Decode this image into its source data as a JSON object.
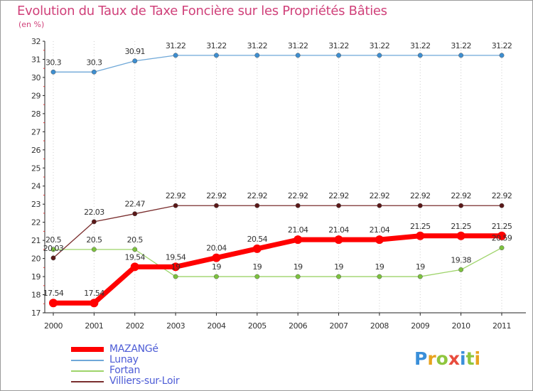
{
  "page": {
    "title": "Evolution du Taux de Taxe Foncière sur les Propriétés Bâties",
    "subtitle": "(en %)",
    "logo": {
      "letters": [
        "P",
        "r",
        "o",
        "x",
        "i",
        "t",
        "i"
      ],
      "colors": [
        "#3a8fd9",
        "#e8a31f",
        "#8fc63e",
        "#e84c3d",
        "#3a8fd9",
        "#8fc63e",
        "#e8a31f"
      ]
    }
  },
  "chart_data": {
    "type": "line",
    "title": "Evolution du Taux de Taxe Foncière sur les Propriétés Bâties",
    "ylabel": "(en %)",
    "xlabel": "",
    "x": [
      "2000",
      "2001",
      "2002",
      "2003",
      "2004",
      "2005",
      "2006",
      "2007",
      "2008",
      "2009",
      "2010",
      "2011"
    ],
    "ylim": [
      17,
      32
    ],
    "yticks": [
      "17",
      "18",
      "19",
      "20",
      "21",
      "22",
      "23",
      "24",
      "25",
      "26",
      "27",
      "28",
      "29",
      "30",
      "31",
      "32"
    ],
    "grid": "vertical dotted",
    "legend_position": "bottom-left",
    "series": [
      {
        "name": "MAZANGé",
        "color": "#ff0000",
        "width": 7,
        "marker": 6,
        "labelPos": "above",
        "values": [
          17.54,
          17.54,
          19.54,
          19.54,
          20.04,
          20.54,
          21.04,
          21.04,
          21.04,
          21.25,
          21.25,
          21.25
        ],
        "labels": [
          "17.54",
          "17.54",
          "19.54",
          "19.54",
          "20.04",
          "20.54",
          "21.04",
          "21.04",
          "21.04",
          "21.25",
          "21.25",
          "21.25"
        ]
      },
      {
        "name": "Lunay",
        "color": "#6fa8d8",
        "width": 1.3,
        "marker": 3.2,
        "markerColor": "#3d8ed0",
        "labelPos": "above",
        "values": [
          30.3,
          30.3,
          30.91,
          31.22,
          31.22,
          31.22,
          31.22,
          31.22,
          31.22,
          31.22,
          31.22,
          31.22
        ],
        "labels": [
          "30.3",
          "30.3",
          "30.91",
          "31.22",
          "31.22",
          "31.22",
          "31.22",
          "31.22",
          "31.22",
          "31.22",
          "31.22",
          "31.22"
        ]
      },
      {
        "name": "Fortan",
        "color": "#9ed46a",
        "width": 1.3,
        "marker": 3.2,
        "markerColor": "#7cc23e",
        "labelPos": "above",
        "values": [
          20.5,
          20.5,
          20.5,
          19,
          19,
          19,
          19,
          19,
          19,
          19,
          19.38,
          20.59
        ],
        "labels": [
          "20.5",
          "20.5",
          "20.5",
          "19",
          "19",
          "19",
          "19",
          "19",
          "19",
          "19",
          "19.38",
          "20.59"
        ]
      },
      {
        "name": "Villiers-sur-Loir",
        "color": "#7a2e2e",
        "width": 1.3,
        "marker": 3.2,
        "markerColor": "#5a1818",
        "labelPos": "above",
        "values": [
          20.03,
          22.03,
          22.47,
          22.92,
          22.92,
          22.92,
          22.92,
          22.92,
          22.92,
          22.92,
          22.92,
          22.92
        ],
        "labels": [
          "20.03",
          "22.03",
          "22.47",
          "22.92",
          "22.92",
          "22.92",
          "22.92",
          "22.92",
          "22.92",
          "22.92",
          "22.92",
          "22.92"
        ]
      }
    ]
  }
}
